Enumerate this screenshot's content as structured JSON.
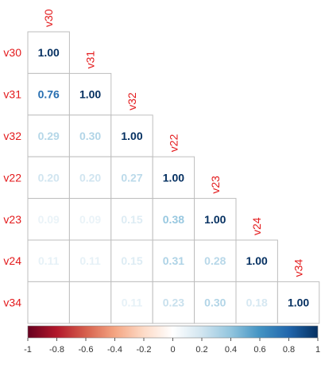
{
  "chart_data": {
    "type": "heatmap",
    "subtype": "correlation-lower-triangle",
    "variables": [
      "v30",
      "v31",
      "v32",
      "v22",
      "v23",
      "v24",
      "v34"
    ],
    "matrix": [
      [
        1.0,
        null,
        null,
        null,
        null,
        null,
        null
      ],
      [
        0.76,
        1.0,
        null,
        null,
        null,
        null,
        null
      ],
      [
        0.29,
        0.3,
        1.0,
        null,
        null,
        null,
        null
      ],
      [
        0.2,
        0.2,
        0.27,
        1.0,
        null,
        null,
        null
      ],
      [
        0.09,
        0.09,
        0.15,
        0.38,
        1.0,
        null,
        null
      ],
      [
        0.11,
        0.11,
        0.15,
        0.31,
        0.28,
        1.0,
        null
      ],
      [
        null,
        null,
        0.11,
        0.23,
        0.3,
        0.18,
        1.0
      ]
    ],
    "color_scale": {
      "range": [
        -1,
        1
      ],
      "ticks": [
        "-1",
        "-0.8",
        "-0.6",
        "-0.4",
        "-0.2",
        "0",
        "0.2",
        "0.4",
        "0.6",
        "0.8",
        "1"
      ],
      "stops": [
        "#67001F",
        "#B2182B",
        "#D6604D",
        "#F4A582",
        "#FDDBC7",
        "#FFFFFF",
        "#D1E5F0",
        "#92C5DE",
        "#4393C3",
        "#2166AC",
        "#053061"
      ]
    },
    "label_color": "#E31A1C",
    "grid_color": "#BEBEBE"
  }
}
